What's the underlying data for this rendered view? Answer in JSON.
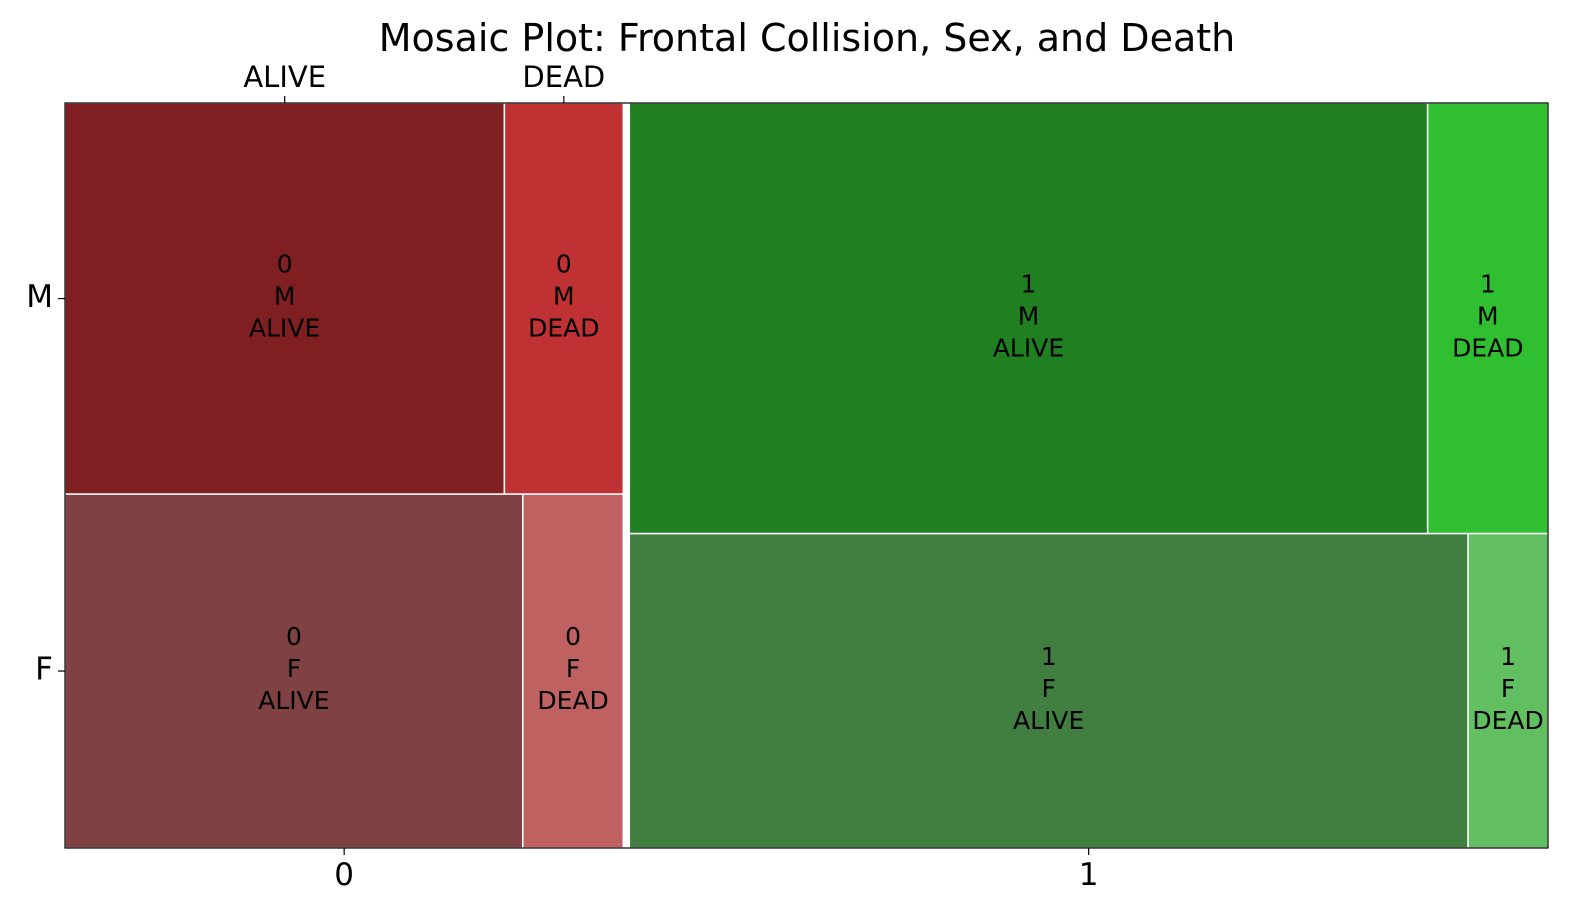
{
  "chart_data": {
    "type": "mosaic",
    "title": "Mosaic Plot: Frontal Collision, Sex, and Death",
    "x_variable_levels": [
      "0",
      "1"
    ],
    "y_variable_levels": [
      "M",
      "F"
    ],
    "inner_levels": [
      "ALIVE",
      "DEAD"
    ],
    "top_tick_labels": [
      "ALIVE",
      "DEAD"
    ],
    "x_proportions": {
      "0": 0.378,
      "1": 0.622
    },
    "y_proportions_within_x": {
      "0": {
        "M": 0.525,
        "F": 0.475
      },
      "1": {
        "M": 0.578,
        "F": 0.422
      }
    },
    "inner_proportions": {
      "0": {
        "M": {
          "ALIVE": 0.787,
          "DEAD": 0.213
        },
        "F": {
          "ALIVE": 0.82,
          "DEAD": 0.18
        }
      },
      "1": {
        "M": {
          "ALIVE": 0.869,
          "DEAD": 0.131
        },
        "F": {
          "ALIVE": 0.913,
          "DEAD": 0.087
        }
      }
    },
    "tiles": [
      {
        "x": "0",
        "y": "M",
        "z": "ALIVE",
        "lines": [
          "0",
          "M",
          "ALIVE"
        ],
        "color": "#7f1f21"
      },
      {
        "x": "0",
        "y": "M",
        "z": "DEAD",
        "lines": [
          "0",
          "M",
          "DEAD"
        ],
        "color": "#bf3133"
      },
      {
        "x": "0",
        "y": "F",
        "z": "ALIVE",
        "lines": [
          "0",
          "F",
          "ALIVE"
        ],
        "color": "#7f4141"
      },
      {
        "x": "0",
        "y": "F",
        "z": "DEAD",
        "lines": [
          "0",
          "F",
          "DEAD"
        ],
        "color": "#bf6161"
      },
      {
        "x": "1",
        "y": "M",
        "z": "ALIVE",
        "lines": [
          "1",
          "M",
          "ALIVE"
        ],
        "color": "#207f21"
      },
      {
        "x": "1",
        "y": "M",
        "z": "DEAD",
        "lines": [
          "1",
          "M",
          "DEAD"
        ],
        "color": "#30bf31"
      },
      {
        "x": "1",
        "y": "F",
        "z": "ALIVE",
        "lines": [
          "1",
          "F",
          "ALIVE"
        ],
        "color": "#417f41"
      },
      {
        "x": "1",
        "y": "F",
        "z": "DEAD",
        "lines": [
          "1",
          "F",
          "DEAD"
        ],
        "color": "#61bf61"
      }
    ]
  }
}
